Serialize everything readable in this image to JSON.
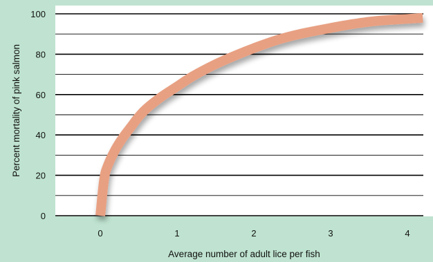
{
  "chart_data": {
    "type": "line",
    "xlabel": "Average number of adult lice per fish",
    "ylabel": "Percent mortality of pink salmon",
    "xlim": [
      -0.6,
      4.3
    ],
    "ylim": [
      0,
      100
    ],
    "x_ticks": [
      "0",
      "1",
      "2",
      "3",
      "4"
    ],
    "y_ticks": [
      "0",
      "20",
      "40",
      "60",
      "80",
      "100"
    ],
    "grid": "horizontal",
    "background_color": "#bfe3d0",
    "plot_color": "#ffffff",
    "series": [
      {
        "color": "#e8a082",
        "x": [
          0,
          0.05,
          0.1,
          0.2,
          0.3,
          0.4,
          0.5,
          0.6,
          0.8,
          1.0,
          1.2,
          1.5,
          1.8,
          2.0,
          2.3,
          2.6,
          3.0,
          3.3,
          3.6,
          4.0,
          4.2
        ],
        "y": [
          0,
          18,
          25,
          33,
          39,
          44,
          49,
          53,
          59,
          64,
          69,
          75,
          80,
          83,
          87,
          90,
          93,
          95,
          96.5,
          97.5,
          98
        ]
      }
    ]
  }
}
